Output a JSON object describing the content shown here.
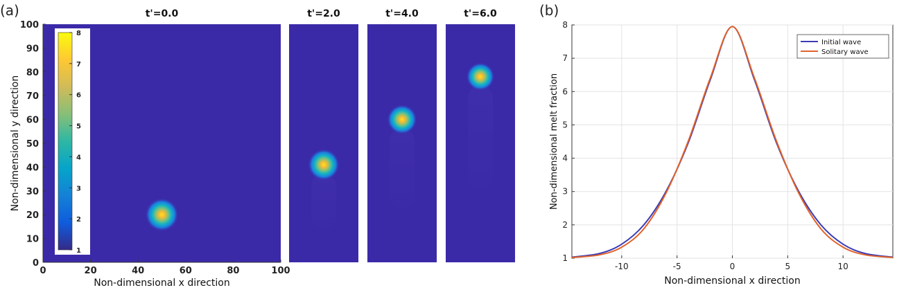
{
  "panel_labels": {
    "a": "(a)",
    "b": "(b)"
  },
  "chart_data": [
    {
      "type": "heatmap",
      "xlabel": "Non-dimensional x direction",
      "ylabel": "Non-dimensional y direction",
      "xlim": [
        0,
        100
      ],
      "ylim": [
        0,
        100
      ],
      "x_ticks": [
        0,
        20,
        40,
        60,
        80,
        100
      ],
      "y_ticks": [
        0,
        10,
        20,
        30,
        40,
        50,
        60,
        70,
        80,
        90,
        100
      ],
      "colorbar": {
        "range": [
          1,
          8
        ],
        "ticks": [
          1,
          2,
          3,
          4,
          5,
          6,
          7,
          8
        ],
        "colormap": "parula",
        "colors": [
          "#352a87",
          "#0f5cdd",
          "#1481d6",
          "#06a4ca",
          "#2eb7a4",
          "#87bf77",
          "#d1bb59",
          "#fec832",
          "#f9fb0e"
        ]
      },
      "background_color": "#3b2aa8",
      "snapshots": [
        {
          "title": "t'=0.0",
          "peak": {
            "x": 50,
            "y": 20,
            "value": 8
          }
        },
        {
          "title": "t'=2.0",
          "peak": {
            "y": 41,
            "value": 7.8
          }
        },
        {
          "title": "t'=4.0",
          "peak": {
            "y": 60,
            "value": 7.6
          }
        },
        {
          "title": "t'=6.0",
          "peak": {
            "y": 78,
            "value": 7.4
          }
        }
      ]
    },
    {
      "type": "line",
      "xlabel": "Non-dimensional x direction",
      "ylabel": "Non-dimensional melt fraction",
      "xlim": [
        -14.5,
        14.5
      ],
      "ylim": [
        1,
        8
      ],
      "x_ticks": [
        -10,
        -5,
        0,
        5,
        10
      ],
      "y_ticks": [
        1,
        2,
        3,
        4,
        5,
        6,
        7,
        8
      ],
      "grid": true,
      "legend_position": "top-right",
      "series": [
        {
          "name": "Initial wave",
          "color": "#3b3bb5",
          "x": [
            -14.5,
            -12,
            -10,
            -8,
            -6,
            -4,
            -2,
            0,
            2,
            4,
            6,
            8,
            10,
            12,
            14.5
          ],
          "y": [
            1.03,
            1.14,
            1.42,
            2.0,
            3.0,
            4.45,
            6.35,
            7.95,
            6.35,
            4.45,
            3.0,
            2.0,
            1.42,
            1.14,
            1.03
          ]
        },
        {
          "name": "Solitary wave",
          "color": "#e0622a",
          "x": [
            -14.5,
            -12,
            -10,
            -8,
            -6,
            -4,
            -2,
            0,
            2,
            4,
            6,
            8,
            10,
            12,
            14.5
          ],
          "y": [
            1.02,
            1.1,
            1.33,
            1.88,
            2.95,
            4.5,
            6.4,
            7.95,
            6.4,
            4.5,
            2.95,
            1.88,
            1.33,
            1.1,
            1.02
          ]
        }
      ]
    }
  ]
}
